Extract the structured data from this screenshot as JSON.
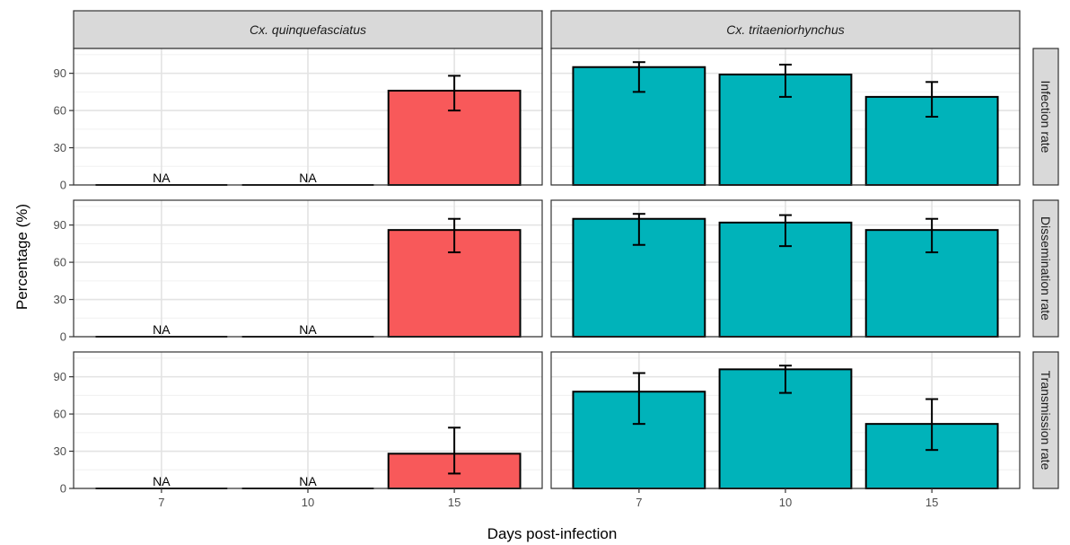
{
  "chart_data": {
    "type": "bar",
    "xlabel": "Days post-infection",
    "ylabel": "Percentage (%)",
    "x_categories": [
      "7",
      "10",
      "15"
    ],
    "ylim": [
      0,
      110
    ],
    "yticks": [
      0,
      30,
      60,
      90
    ],
    "grid": true,
    "facet_columns": [
      {
        "name": "Cx. quinquefasciatus",
        "color": "#F8595A"
      },
      {
        "name": "Cx. tritaeniorhynchus",
        "color": "#00B3BA"
      }
    ],
    "facet_rows": [
      "Infection rate",
      "Dissemination rate",
      "Transmission rate"
    ],
    "na_label": "NA",
    "panels": [
      {
        "row": 0,
        "col": 0,
        "values": [
          null,
          null,
          76
        ],
        "lower": [
          null,
          null,
          60
        ],
        "upper": [
          null,
          null,
          88
        ]
      },
      {
        "row": 0,
        "col": 1,
        "values": [
          95,
          89,
          71
        ],
        "lower": [
          75,
          71,
          55
        ],
        "upper": [
          99,
          97,
          83
        ]
      },
      {
        "row": 1,
        "col": 0,
        "values": [
          null,
          null,
          86
        ],
        "lower": [
          null,
          null,
          68
        ],
        "upper": [
          null,
          null,
          95
        ]
      },
      {
        "row": 1,
        "col": 1,
        "values": [
          95,
          92,
          86
        ],
        "lower": [
          74,
          73,
          68
        ],
        "upper": [
          99,
          98,
          95
        ]
      },
      {
        "row": 2,
        "col": 0,
        "values": [
          null,
          null,
          28
        ],
        "lower": [
          null,
          null,
          12
        ],
        "upper": [
          null,
          null,
          49
        ]
      },
      {
        "row": 2,
        "col": 1,
        "values": [
          78,
          96,
          52
        ],
        "lower": [
          52,
          77,
          31
        ],
        "upper": [
          93,
          99,
          72
        ]
      }
    ]
  }
}
